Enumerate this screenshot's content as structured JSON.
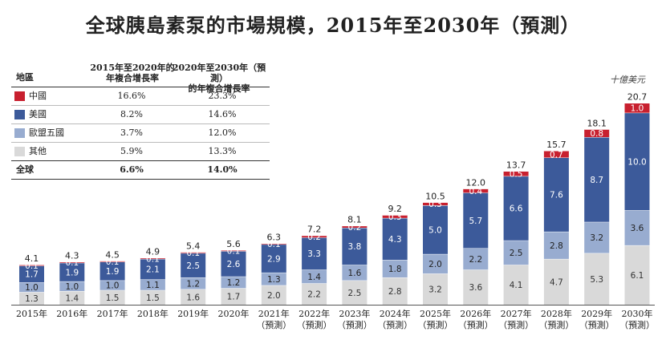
{
  "title": "全球胰島素泵的市場規模，2015年至2030年（預測）",
  "unit": "十億美元",
  "table": {
    "headers": {
      "region": "地區",
      "cagr1_line1": "2015年至2020年的",
      "cagr1_line2": "年複合增長率",
      "cagr2_line1": "2020年至2030年（預測）",
      "cagr2_line2": "的年複合增長率"
    },
    "rows": [
      {
        "name": "中國",
        "v1": "16.6%",
        "v2": "23.3%",
        "color": "#c8202f"
      },
      {
        "name": "美國",
        "v1": "8.2%",
        "v2": "14.6%",
        "color": "#3c5a9a"
      },
      {
        "name": "歐盟五國",
        "v1": "3.7%",
        "v2": "12.0%",
        "color": "#98acd0"
      },
      {
        "name": "其他",
        "v1": "5.9%",
        "v2": "13.3%",
        "color": "#d9d9d9"
      }
    ],
    "total": {
      "name": "全球",
      "v1": "6.6%",
      "v2": "14.0%"
    }
  },
  "chart_data": {
    "type": "bar",
    "stacked": true,
    "categories": [
      "2015年",
      "2016年",
      "2017年",
      "2018年",
      "2019年",
      "2020年",
      "2021年\n（預測）",
      "2022年\n（預測）",
      "2023年\n（預測）",
      "2024年\n（預測）",
      "2025年\n（預測）",
      "2026年\n（預測）",
      "2027年\n（預測）",
      "2028年\n（預測）",
      "2029年\n（預測）",
      "2030年\n（預測）"
    ],
    "series": [
      {
        "name": "其他",
        "color": "#d9d9d9",
        "label_color": "#333333",
        "values": [
          1.3,
          1.4,
          1.5,
          1.5,
          1.6,
          1.7,
          2.0,
          2.2,
          2.5,
          2.8,
          3.2,
          3.6,
          4.1,
          4.7,
          5.3,
          6.1
        ]
      },
      {
        "name": "歐盟五國",
        "color": "#98acd0",
        "label_color": "#222222",
        "values": [
          1.0,
          1.0,
          1.0,
          1.1,
          1.2,
          1.2,
          1.3,
          1.4,
          1.6,
          1.8,
          2.0,
          2.2,
          2.5,
          2.8,
          3.2,
          3.6
        ]
      },
      {
        "name": "美國",
        "color": "#3c5a9a",
        "label_color": "#ffffff",
        "values": [
          1.7,
          1.9,
          1.9,
          2.1,
          2.5,
          2.6,
          2.9,
          3.3,
          3.8,
          4.3,
          5.0,
          5.7,
          6.6,
          7.6,
          8.7,
          10.0
        ]
      },
      {
        "name": "中國",
        "color": "#c8202f",
        "label_color": "#ffffff",
        "values": [
          0.1,
          0.1,
          0.1,
          0.1,
          0.1,
          0.1,
          0.1,
          0.2,
          0.2,
          0.3,
          0.3,
          0.4,
          0.5,
          0.7,
          0.8,
          1.0
        ]
      }
    ],
    "totals": [
      4.1,
      4.3,
      4.5,
      4.9,
      5.4,
      5.6,
      6.3,
      7.2,
      8.1,
      9.2,
      10.5,
      12.0,
      13.7,
      15.7,
      18.1,
      20.7
    ],
    "ylim": [
      0,
      22
    ]
  }
}
